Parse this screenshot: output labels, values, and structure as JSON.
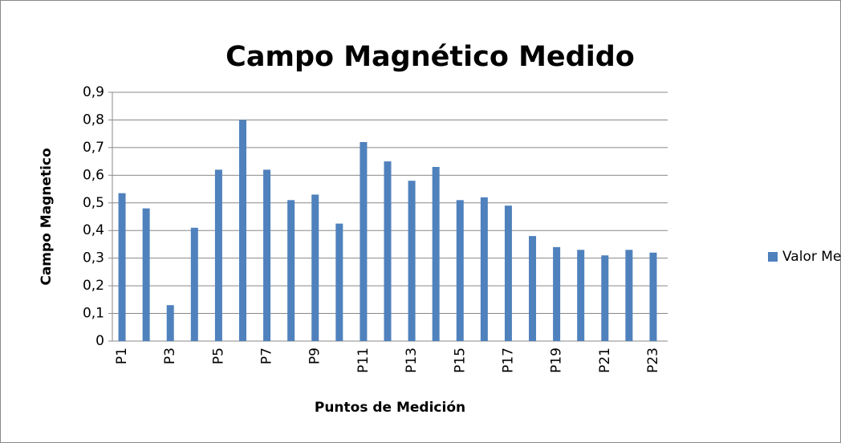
{
  "chart_data": {
    "type": "bar",
    "title": "Campo Magnético Medido",
    "x_label": "Puntos de Medición",
    "y_label": "Campo Magnetico",
    "categories": [
      "P1",
      null,
      "P3",
      null,
      "P5",
      null,
      "P7",
      null,
      "P9",
      null,
      "P11",
      null,
      "P13",
      null,
      "P15",
      null,
      "P17",
      null,
      "P19",
      null,
      "P21",
      null,
      "P23"
    ],
    "series": [
      {
        "name": "Valor Medido",
        "color": "#4f81bd",
        "values": [
          0.535,
          0.48,
          0.13,
          0.41,
          0.62,
          0.8,
          0.62,
          0.51,
          0.53,
          0.425,
          0.72,
          0.65,
          0.58,
          0.63,
          0.51,
          0.52,
          0.49,
          0.38,
          0.34,
          0.33,
          0.31,
          0.33,
          0.32
        ]
      }
    ],
    "ylim": [
      0,
      0.9
    ],
    "yticks": [
      0,
      {
        "value": 0.1,
        "label": "0,1"
      },
      {
        "value": 0.2,
        "label": "0,2"
      },
      {
        "value": 0.3,
        "label": "0,3"
      },
      {
        "value": 0.4,
        "label": "0,4"
      },
      {
        "value": 0.5,
        "label": "0,5"
      },
      {
        "value": 0.6,
        "label": "0,6"
      },
      {
        "value": 0.7,
        "label": "0,7"
      },
      {
        "value": 0.8,
        "label": "0,8"
      },
      {
        "value": 0.9,
        "label": "0,9"
      }
    ],
    "grid": true,
    "legend": "right"
  }
}
